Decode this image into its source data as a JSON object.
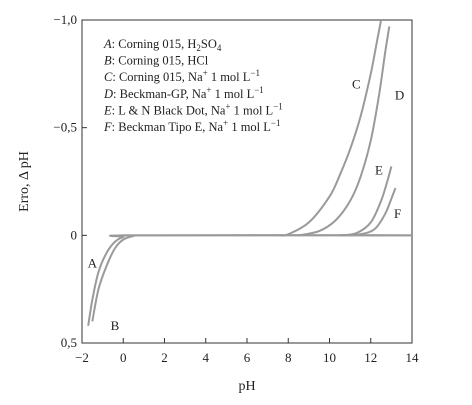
{
  "chart_data": {
    "type": "line",
    "xlabel": "pH",
    "ylabel": "Erro, Δ pH",
    "xlim": [
      -2,
      14
    ],
    "ylim": [
      -1.0,
      0.5
    ],
    "y_inverted": true,
    "grid": false,
    "legend_position": "top-left",
    "line_color": "#9a9a9a",
    "xticks": [
      {
        "value": -2,
        "label": "−2"
      },
      {
        "value": 0,
        "label": "0"
      },
      {
        "value": 2,
        "label": "2"
      },
      {
        "value": 4,
        "label": "4"
      },
      {
        "value": 6,
        "label": "6"
      },
      {
        "value": 8,
        "label": "8"
      },
      {
        "value": 10,
        "label": "10"
      },
      {
        "value": 12,
        "label": "12"
      },
      {
        "value": 14,
        "label": "14"
      }
    ],
    "yticks": [
      {
        "value": -1.0,
        "label": "−1,0"
      },
      {
        "value": -0.5,
        "label": "−0,5"
      },
      {
        "value": 0,
        "label": "0"
      },
      {
        "value": 0.5,
        "label": "0,5"
      }
    ],
    "legend": [
      {
        "letter": "A",
        "text": ": Corning 015, H",
        "sub": "2",
        "text2": "SO",
        "sub2": "4",
        "text3": ""
      },
      {
        "letter": "B",
        "text": ": Corning 015, HCl",
        "sub": "",
        "text2": "",
        "sub2": "",
        "text3": ""
      },
      {
        "letter": "C",
        "text": ": Corning 015, Na",
        "sup": "+",
        "text2": " 1 mol L",
        "sup2": "−1"
      },
      {
        "letter": "D",
        "text": ": Beckman-GP, Na",
        "sup": "+",
        "text2": " 1 mol L",
        "sup2": "−1"
      },
      {
        "letter": "E",
        "text": ": L & N Black Dot, Na",
        "sup": "+",
        "text2": " 1 mol L",
        "sup2": "−1"
      },
      {
        "letter": "F",
        "text": ": Beckman Tipo E, Na",
        "sup": "+",
        "text2": " 1 mol L",
        "sup2": "−1"
      }
    ],
    "series": [
      {
        "name": "A",
        "label_at": [
          -1.5,
          0.13
        ],
        "points": [
          [
            -1.7,
            0.42
          ],
          [
            -1.5,
            0.3
          ],
          [
            -1.2,
            0.17
          ],
          [
            -0.8,
            0.08
          ],
          [
            -0.4,
            0.03
          ],
          [
            0,
            0.008
          ],
          [
            0.5,
            0
          ],
          [
            14,
            0
          ]
        ]
      },
      {
        "name": "B",
        "label_at": [
          -0.4,
          0.42
        ],
        "points": [
          [
            -1.5,
            0.4
          ],
          [
            -1.2,
            0.25
          ],
          [
            -0.8,
            0.14
          ],
          [
            -0.4,
            0.06
          ],
          [
            0,
            0.02
          ],
          [
            0.5,
            0.003
          ],
          [
            1,
            0
          ],
          [
            14,
            0
          ]
        ]
      },
      {
        "name": "C",
        "label_at": [
          11.3,
          -0.7
        ],
        "points": [
          [
            7.6,
            0
          ],
          [
            8,
            -0.005
          ],
          [
            9,
            -0.06
          ],
          [
            10,
            -0.18
          ],
          [
            10.5,
            -0.28
          ],
          [
            11,
            -0.4
          ],
          [
            11.5,
            -0.55
          ],
          [
            12,
            -0.75
          ],
          [
            12.3,
            -0.9
          ],
          [
            12.5,
            -1.0
          ]
        ]
      },
      {
        "name": "D",
        "label_at": [
          13.4,
          -0.65
        ],
        "points": [
          [
            8.5,
            0
          ],
          [
            9.5,
            -0.02
          ],
          [
            10.3,
            -0.07
          ],
          [
            11,
            -0.16
          ],
          [
            11.5,
            -0.27
          ],
          [
            12,
            -0.44
          ],
          [
            12.4,
            -0.65
          ],
          [
            12.7,
            -0.85
          ],
          [
            12.9,
            -0.97
          ]
        ]
      },
      {
        "name": "E",
        "label_at": [
          12.4,
          -0.3
        ],
        "points": [
          [
            10.5,
            0
          ],
          [
            11.3,
            -0.01
          ],
          [
            12,
            -0.06
          ],
          [
            12.5,
            -0.16
          ],
          [
            12.8,
            -0.25
          ],
          [
            13,
            -0.32
          ]
        ]
      },
      {
        "name": "F",
        "label_at": [
          13.3,
          -0.1
        ],
        "points": [
          [
            10.5,
            0
          ],
          [
            11.5,
            -0.005
          ],
          [
            12.2,
            -0.03
          ],
          [
            12.7,
            -0.1
          ],
          [
            13,
            -0.17
          ],
          [
            13.2,
            -0.22
          ]
        ]
      }
    ]
  }
}
